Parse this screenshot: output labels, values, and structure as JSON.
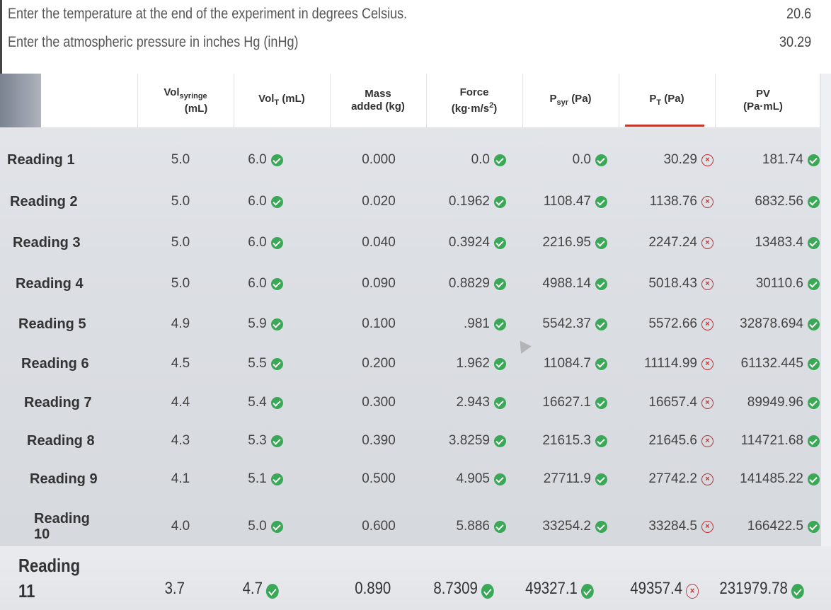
{
  "questions": {
    "temperature": {
      "label": "Enter the temperature at the end of the experiment in degrees Celsius.",
      "value": "20.6"
    },
    "pressure": {
      "label": "Enter the atmospheric pressure in inches Hg (inHg)",
      "value": "30.29"
    }
  },
  "table": {
    "headers": {
      "vol_syringe": {
        "main": "Vol",
        "sub": "syringe",
        "unit": "(mL)"
      },
      "vol_t": {
        "main": "Vol",
        "sub": "T",
        "unit": "(mL)"
      },
      "mass": {
        "line1": "Mass",
        "line2": "added (kg)"
      },
      "force": {
        "line1": "Force",
        "line2": "(kg·m/s",
        "sup": "2",
        "end": ")"
      },
      "psyr": {
        "main": "P",
        "sub": "syr",
        "unit": "(Pa)"
      },
      "pt": {
        "main": "P",
        "sub": "T",
        "unit": "(Pa)"
      },
      "pv": {
        "line1": "PV",
        "line2": "(Pa·mL)"
      }
    },
    "rows": [
      {
        "label": "Reading 1",
        "vol_syringe": "5.0",
        "vol_t": "6.0",
        "mass": "0.000",
        "force": "0.0",
        "psyr": "0.0",
        "pt": "30.29",
        "pv": "181.74"
      },
      {
        "label": "Reading 2",
        "vol_syringe": "5.0",
        "vol_t": "6.0",
        "mass": "0.020",
        "force": "0.1962",
        "psyr": "1108.47",
        "pt": "1138.76",
        "pv": "6832.56"
      },
      {
        "label": "Reading 3",
        "vol_syringe": "5.0",
        "vol_t": "6.0",
        "mass": "0.040",
        "force": "0.3924",
        "psyr": "2216.95",
        "pt": "2247.24",
        "pv": "13483.4"
      },
      {
        "label": "Reading 4",
        "vol_syringe": "5.0",
        "vol_t": "6.0",
        "mass": "0.090",
        "force": "0.8829",
        "psyr": "4988.14",
        "pt": "5018.43",
        "pv": "30110.6"
      },
      {
        "label": "Reading 5",
        "vol_syringe": "4.9",
        "vol_t": "5.9",
        "mass": "0.100",
        "force": ".981",
        "psyr": "5542.37",
        "pt": "5572.66",
        "pv": "32878.694"
      },
      {
        "label": "Reading 6",
        "vol_syringe": "4.5",
        "vol_t": "5.5",
        "mass": "0.200",
        "force": "1.962",
        "psyr": "11084.7",
        "pt": "11114.99",
        "pv": "61132.445"
      },
      {
        "label": "Reading 7",
        "vol_syringe": "4.4",
        "vol_t": "5.4",
        "mass": "0.300",
        "force": "2.943",
        "psyr": "16627.1",
        "pt": "16657.4",
        "pv": "89949.96"
      },
      {
        "label": "Reading 8",
        "vol_syringe": "4.3",
        "vol_t": "5.3",
        "mass": "0.390",
        "force": "3.8259",
        "psyr": "21615.3",
        "pt": "21645.6",
        "pv": "114721.68"
      },
      {
        "label": "Reading 9",
        "vol_syringe": "4.1",
        "vol_t": "5.1",
        "mass": "0.500",
        "force": "4.905",
        "psyr": "27711.9",
        "pt": "27742.2",
        "pv": "141485.22"
      },
      {
        "label_line1": "Reading",
        "label_line2": "10",
        "vol_syringe": "4.0",
        "vol_t": "5.0",
        "mass": "0.600",
        "force": "5.886",
        "psyr": "33254.2",
        "pt": "33284.5",
        "pv": "166422.5"
      },
      {
        "label_line1": "Reading",
        "label_line2": "11",
        "vol_syringe": "3.7",
        "vol_t": "4.7",
        "mass": "0.890",
        "force": "8.7309",
        "psyr": "49327.1",
        "pt": "49357.4",
        "pv": "231979.78"
      }
    ]
  },
  "icons": {
    "correct": "check-circle-icon",
    "incorrect": "x-circle-icon"
  },
  "colors": {
    "correct": "#3aa856",
    "incorrect": "#b33333",
    "tab_indicator": "#c0392b"
  }
}
